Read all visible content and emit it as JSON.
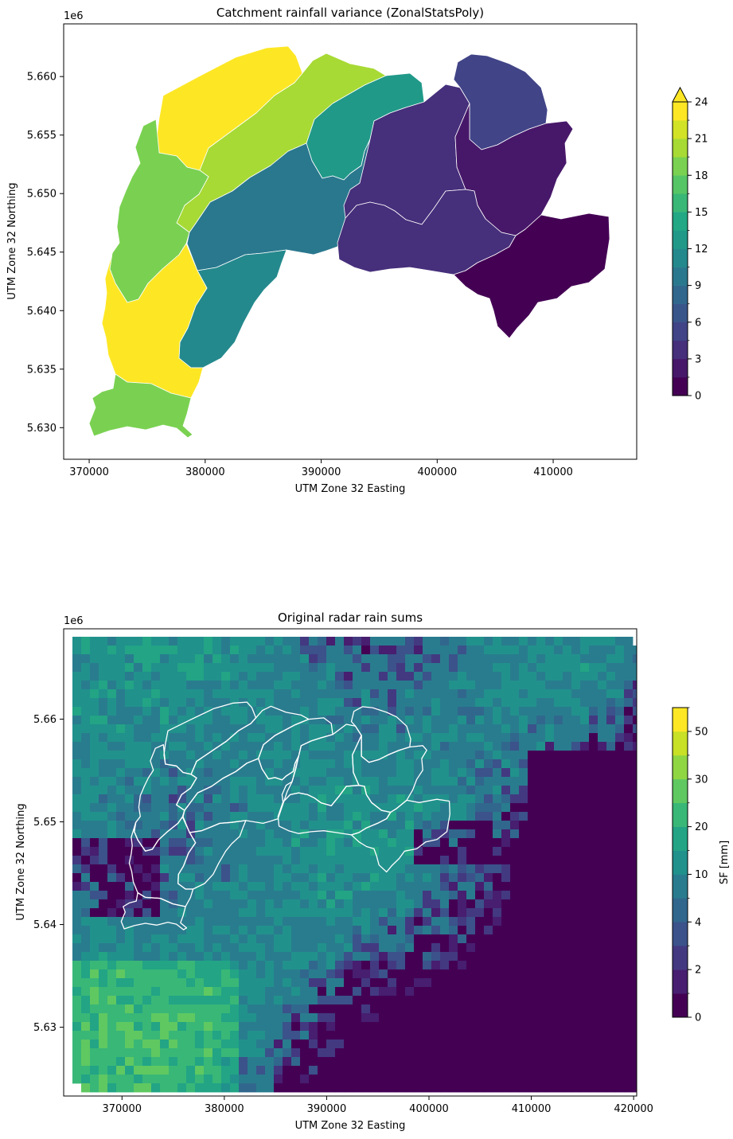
{
  "chart_data": [
    {
      "type": "heatmap",
      "title": "Catchment rainfall variance (ZonalStatsPoly)",
      "xlabel": "UTM Zone 32 Easting",
      "ylabel": "UTM Zone 32 Northing",
      "y_offset_label": "1e6",
      "xlim": [
        367800,
        417200
      ],
      "ylim": [
        5.6273,
        5.6645
      ],
      "xticks": [
        370000,
        380000,
        390000,
        400000,
        410000
      ],
      "xtick_labels": [
        "370000",
        "380000",
        "390000",
        "400000",
        "410000"
      ],
      "yticks": [
        5.63,
        5.635,
        5.64,
        5.645,
        5.65,
        5.655,
        5.66
      ],
      "ytick_labels": [
        "5.630",
        "5.635",
        "5.640",
        "5.645",
        "5.650",
        "5.655",
        "5.660"
      ],
      "colormap": "viridis",
      "colorbar": {
        "label": "",
        "extend": "max",
        "levels": [
          0,
          1.5,
          3,
          4.5,
          6,
          7.5,
          9,
          10.5,
          12,
          13.5,
          15,
          16.5,
          18,
          19.5,
          21,
          22.5,
          24
        ],
        "tick_values": [
          0,
          3,
          6,
          9,
          12,
          15,
          18,
          21,
          24
        ],
        "tick_labels": [
          "0",
          "3",
          "6",
          "9",
          "12",
          "15",
          "18",
          "21",
          "24"
        ]
      },
      "polygon_style": {
        "edgecolor": "#ffffff"
      }
    },
    {
      "type": "heatmap",
      "title": "Original radar rain sums",
      "xlabel": "UTM Zone 32 Easting",
      "ylabel": "UTM Zone 32 Northing",
      "y_offset_label": "1e6",
      "xlim": [
        364300,
        420300
      ],
      "ylim": [
        5.6233,
        5.6688
      ],
      "xticks": [
        370000,
        380000,
        390000,
        400000,
        410000,
        420000
      ],
      "xtick_labels": [
        "370000",
        "380000",
        "390000",
        "400000",
        "410000",
        "420000"
      ],
      "yticks": [
        5.63,
        5.64,
        5.65,
        5.66
      ],
      "ytick_labels": [
        "5.63",
        "5.64",
        "5.65",
        "5.66"
      ],
      "colormap": "viridis",
      "colorbar": {
        "label": "SF [mm]",
        "extend": "neither",
        "levels": [
          0,
          1,
          2,
          3,
          4,
          5,
          10,
          15,
          20,
          25,
          30,
          40,
          50,
          55
        ],
        "tick_values": [
          0,
          2,
          4,
          10,
          20,
          30,
          50
        ],
        "tick_labels": [
          "0",
          "2",
          "4",
          "10",
          "20",
          "30",
          "50"
        ]
      },
      "catchment_outline_color": "#ffffff"
    }
  ]
}
